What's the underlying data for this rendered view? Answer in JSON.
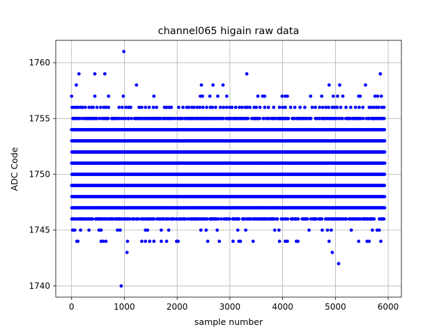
{
  "chart_data": {
    "type": "scatter",
    "title": "channel065 higain raw data",
    "xlabel": "sample number",
    "ylabel": "ADC Code",
    "xlim": [
      -300,
      6250
    ],
    "ylim": [
      1739,
      1762
    ],
    "xticks": [
      0,
      1000,
      2000,
      3000,
      4000,
      5000,
      6000
    ],
    "yticks": [
      1740,
      1745,
      1750,
      1755,
      1760
    ],
    "grid": true,
    "marker_color": "#0000ff",
    "n_samples": 5940,
    "series": [
      {
        "dense_levels": [
          1747,
          1748,
          1749,
          1750,
          1751,
          1752,
          1753,
          1754
        ],
        "medium_levels": [
          1746,
          1755
        ],
        "sparse_levels": [
          {
            "y": 1745,
            "x": [
              20,
              60,
              170,
              330,
              520,
              560,
              870,
              920,
              1400,
              1440,
              1700,
              1840,
              2450,
              2550,
              2760,
              3150,
              3300,
              3850,
              3930,
              4500,
              4750,
              4850,
              4920,
              5300,
              5700,
              5790,
              5830
            ]
          },
          {
            "y": 1744,
            "x": [
              100,
              120,
              560,
              600,
              650,
              1060,
              1330,
              1400,
              1480,
              1560,
              1700,
              1800,
              1990,
              2020,
              2580,
              2800,
              3060,
              3170,
              3200,
              3440,
              3940,
              4050,
              4090,
              4260,
              4290,
              4880,
              5440,
              5600,
              5640,
              5860
            ]
          },
          {
            "y": 1756,
            "x": [
              10,
              50,
              90,
              130,
              180,
              210,
              260,
              330,
              380,
              410,
              480,
              550,
              610,
              650,
              700,
              900,
              960,
              1030,
              1080,
              1120,
              1280,
              1330,
              1400,
              1470,
              1550,
              1610,
              1760,
              1800,
              1850,
              1890,
              2030,
              2110,
              2180,
              2220,
              2280,
              2320,
              2380,
              2430,
              2490,
              2560,
              2630,
              2670,
              2730,
              2820,
              2880,
              2940,
              3000,
              3040,
              3110,
              3180,
              3230,
              3290,
              3330,
              3380,
              3460,
              3500,
              3570,
              3660,
              3730,
              3830,
              3940,
              4000,
              4050,
              4150,
              4230,
              4330,
              4420,
              4560,
              4620,
              4700,
              4760,
              4820,
              4870,
              4940,
              4980,
              5030,
              5100,
              5200,
              5290,
              5380,
              5450,
              5520,
              5640,
              5680,
              5730,
              5780,
              5820,
              5880,
              5920
            ]
          },
          {
            "y": 1757,
            "x": [
              0,
              440,
              700,
              980,
              1560,
              2440,
              2480,
              2620,
              2770,
              2940,
              3530,
              3620,
              3660,
              3990,
              4050,
              4090,
              4530,
              4740,
              4960,
              5040,
              5140,
              5440,
              5470,
              5750,
              5800,
              5870
            ]
          },
          {
            "y": 1758,
            "x": [
              90,
              1230,
              2460,
              2680,
              2870,
              4880,
              5080,
              5570
            ]
          },
          {
            "y": 1759,
            "x": [
              140,
              440,
              630,
              3320,
              5850
            ]
          },
          {
            "y": 1761,
            "x": [
              990
            ]
          },
          {
            "y": 1743,
            "x": [
              1050,
              4940
            ]
          },
          {
            "y": 1742,
            "x": [
              5060
            ]
          },
          {
            "y": 1740,
            "x": [
              940
            ]
          }
        ]
      }
    ]
  }
}
